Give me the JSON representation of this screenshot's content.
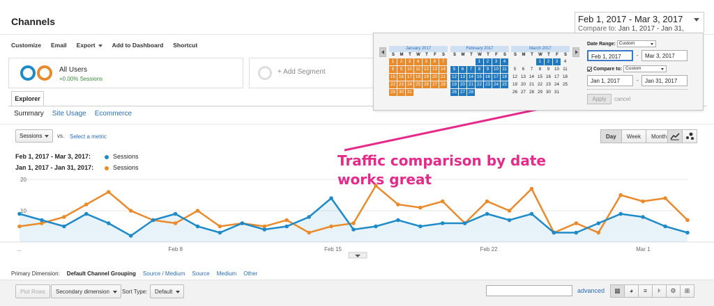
{
  "header": {
    "title": "Channels",
    "date_range": "Feb 1, 2017 - Mar 3, 2017",
    "compare_prefix": "Compare to:",
    "compare_range": "Jan 1, 2017 - Jan 31, 2017"
  },
  "toolbar": [
    "Customize",
    "Email",
    "Export",
    "Add to Dashboard",
    "Shortcut"
  ],
  "segments": {
    "all_users": "All Users",
    "all_users_sub": "+0.00% Sessions",
    "add_segment": "+ Add Segment"
  },
  "tabs": {
    "explorer": "Explorer"
  },
  "subtabs": [
    "Summary",
    "Site Usage",
    "Ecommerce"
  ],
  "metric": {
    "selected": "Sessions",
    "vs": "vs.",
    "select_metric": "Select a metric"
  },
  "period_buttons": [
    "Day",
    "Week",
    "Month"
  ],
  "legend": [
    {
      "range": "Feb 1, 2017 - Mar 3, 2017:",
      "metric": "Sessions",
      "color": "#1f8ac8"
    },
    {
      "range": "Jan 1, 2017 - Jan 31, 2017:",
      "metric": "Sessions",
      "color": "#e98a2b"
    }
  ],
  "annotation": {
    "line1": "Traffic comparison by date",
    "line2": "works great"
  },
  "calendar": {
    "months": [
      {
        "name": "January 2017",
        "lead": 0,
        "days": 31,
        "highlight": "o"
      },
      {
        "name": "February 2017",
        "lead": 3,
        "days": 28,
        "highlight": "b"
      },
      {
        "name": "March 2017",
        "lead": 3,
        "days": 31,
        "highlight": "b",
        "highlight_to": 3
      }
    ],
    "weekdays": [
      "S",
      "M",
      "T",
      "W",
      "T",
      "F",
      "S"
    ],
    "date_range_label": "Date Range:",
    "date_range_mode": "Custom",
    "start": "Feb 1, 2017",
    "end": "Mar 3, 2017",
    "compare_label": "Compare to:",
    "compare_mode": "Custom",
    "compare_start": "Jan 1, 2017",
    "compare_end": "Jan 31, 2017",
    "apply": "Apply",
    "cancel": "cancel",
    "dash": "-"
  },
  "chart_data": {
    "type": "line",
    "y_ticks": [
      "20",
      "10"
    ],
    "x_tick_labels": [
      "...",
      "Feb 8",
      "Feb 15",
      "Feb 22",
      "Mar 1"
    ],
    "ylim": [
      0,
      20
    ],
    "series": [
      {
        "name": "Sessions",
        "color": "#1f8ac8",
        "values": [
          9,
          7,
          5,
          9,
          6,
          2,
          7,
          9,
          5,
          3,
          6,
          4,
          5,
          8,
          14,
          4,
          5,
          7,
          5,
          6,
          6,
          9,
          7,
          9,
          3,
          3,
          6,
          9,
          8,
          5,
          3
        ]
      },
      {
        "name": "Sessions",
        "color": "#e98a2b",
        "values": [
          5,
          6,
          8,
          12,
          16,
          10,
          7,
          6,
          10,
          5,
          6,
          5,
          7,
          3,
          5,
          6,
          18,
          12,
          11,
          13,
          6,
          13,
          10,
          17,
          3,
          6,
          3,
          15,
          13,
          14,
          7
        ]
      }
    ]
  },
  "primary_dimension": {
    "label": "Primary Dimension:",
    "selected": "Default Channel Grouping",
    "options": [
      "Source / Medium",
      "Source",
      "Medium",
      "Other"
    ]
  },
  "table_controls": {
    "plot_rows": "Plot Rows",
    "secondary": "Secondary dimension",
    "sort_type_label": "Sort Type:",
    "sort_type": "Default",
    "advanced": "advanced"
  }
}
